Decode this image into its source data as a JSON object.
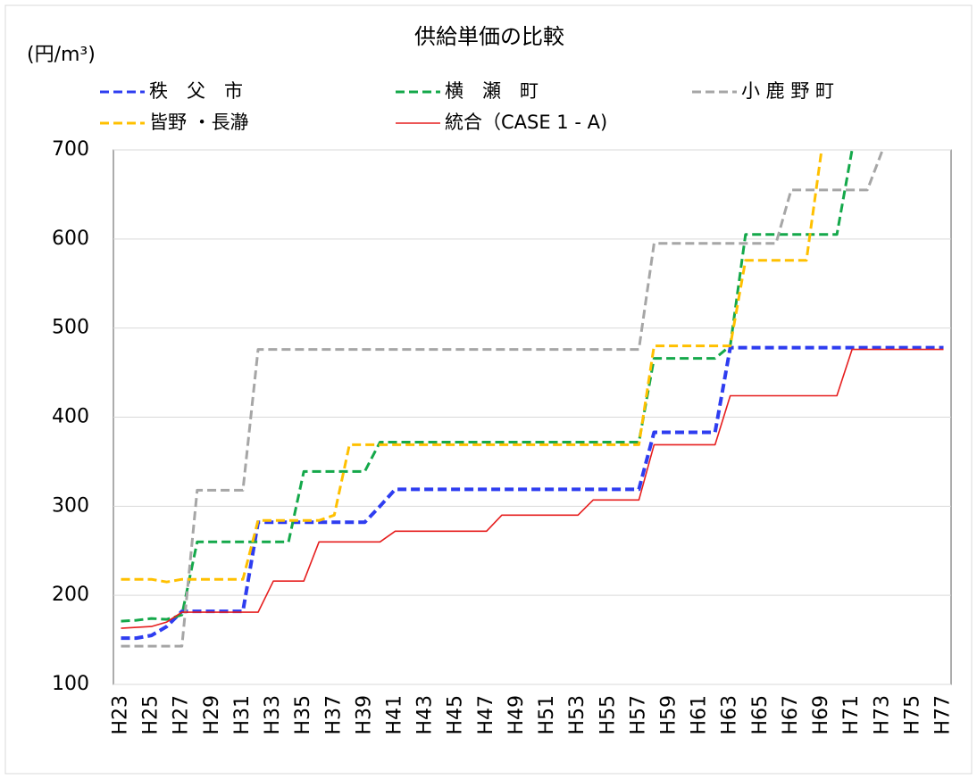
{
  "chart_data": {
    "type": "line",
    "title": "供給単価の比較",
    "y_label": "(円/m³)",
    "categories": [
      "H23",
      null,
      "H25",
      null,
      "H27",
      null,
      "H29",
      null,
      "H31",
      null,
      "H33",
      null,
      "H35",
      null,
      "H37",
      null,
      "H39",
      null,
      "H41",
      null,
      "H43",
      null,
      "H45",
      null,
      "H47",
      null,
      "H49",
      null,
      "H51",
      null,
      "H53",
      null,
      "H55",
      null,
      "H57",
      null,
      "H59",
      null,
      "H61",
      null,
      "H63",
      null,
      "H65",
      null,
      "H67",
      null,
      "H69",
      null,
      "H71",
      null,
      "H73",
      null,
      "H75",
      null,
      "H77"
    ],
    "series": [
      {
        "name": "秩　父　市",
        "color": "#2e3df0",
        "dash": true,
        "values": [
          152,
          152,
          155,
          165,
          182,
          182,
          182,
          182,
          182,
          282,
          282,
          282,
          282,
          282,
          282,
          282,
          282,
          300,
          319,
          319,
          319,
          319,
          319,
          319,
          319,
          319,
          319,
          319,
          319,
          319,
          319,
          319,
          319,
          319,
          319,
          383,
          383,
          383,
          383,
          383,
          478,
          478,
          478,
          478,
          478,
          478,
          478,
          478,
          478,
          478,
          478,
          478,
          478,
          478,
          478
        ]
      },
      {
        "name": "横　瀬　町",
        "color": "#14a84a",
        "dash": true,
        "values": [
          171,
          172,
          174,
          173,
          178,
          260,
          260,
          260,
          260,
          260,
          260,
          260,
          339,
          339,
          339,
          339,
          339,
          372,
          372,
          372,
          372,
          372,
          372,
          372,
          372,
          372,
          372,
          372,
          372,
          372,
          372,
          372,
          372,
          372,
          372,
          466,
          466,
          466,
          466,
          466,
          480,
          605,
          605,
          605,
          605,
          605,
          605,
          605,
          700,
          null,
          null,
          null,
          null,
          null,
          null
        ]
      },
      {
        "name": "小 鹿 野 町",
        "color": "#a6a6a6",
        "dash": true,
        "values": [
          143,
          143,
          143,
          143,
          143,
          318,
          318,
          318,
          318,
          476,
          476,
          476,
          476,
          476,
          476,
          476,
          476,
          476,
          476,
          476,
          476,
          476,
          476,
          476,
          476,
          476,
          476,
          476,
          476,
          476,
          476,
          476,
          476,
          476,
          476,
          595,
          595,
          595,
          595,
          595,
          595,
          595,
          595,
          595,
          655,
          655,
          655,
          655,
          655,
          655,
          700,
          null,
          null,
          null,
          null
        ]
      },
      {
        "name": "皆野 ・長瀞",
        "color": "#ffc000",
        "dash": true,
        "values": [
          218,
          218,
          218,
          215,
          218,
          218,
          218,
          218,
          218,
          284,
          284,
          284,
          284,
          284,
          290,
          369,
          369,
          369,
          369,
          369,
          369,
          369,
          369,
          369,
          369,
          369,
          369,
          369,
          369,
          369,
          369,
          369,
          369,
          369,
          369,
          480,
          480,
          480,
          480,
          480,
          480,
          576,
          576,
          576,
          576,
          576,
          700,
          null,
          null,
          null,
          null,
          null,
          null,
          null,
          null
        ]
      },
      {
        "name": "統合（CASE 1 - A)",
        "color": "#e61e1e",
        "dash": false,
        "values": [
          163,
          164,
          165,
          170,
          181,
          181,
          181,
          181,
          181,
          181,
          216,
          216,
          216,
          260,
          260,
          260,
          260,
          260,
          272,
          272,
          272,
          272,
          272,
          272,
          272,
          290,
          290,
          290,
          290,
          290,
          290,
          307,
          307,
          307,
          307,
          369,
          369,
          369,
          369,
          369,
          424,
          424,
          424,
          424,
          424,
          424,
          424,
          424,
          476,
          476,
          476,
          476,
          476,
          476,
          476
        ]
      }
    ],
    "ylim": [
      100,
      700
    ],
    "yticks": [
      100,
      200,
      300,
      400,
      500,
      600,
      700
    ],
    "grid": true
  }
}
